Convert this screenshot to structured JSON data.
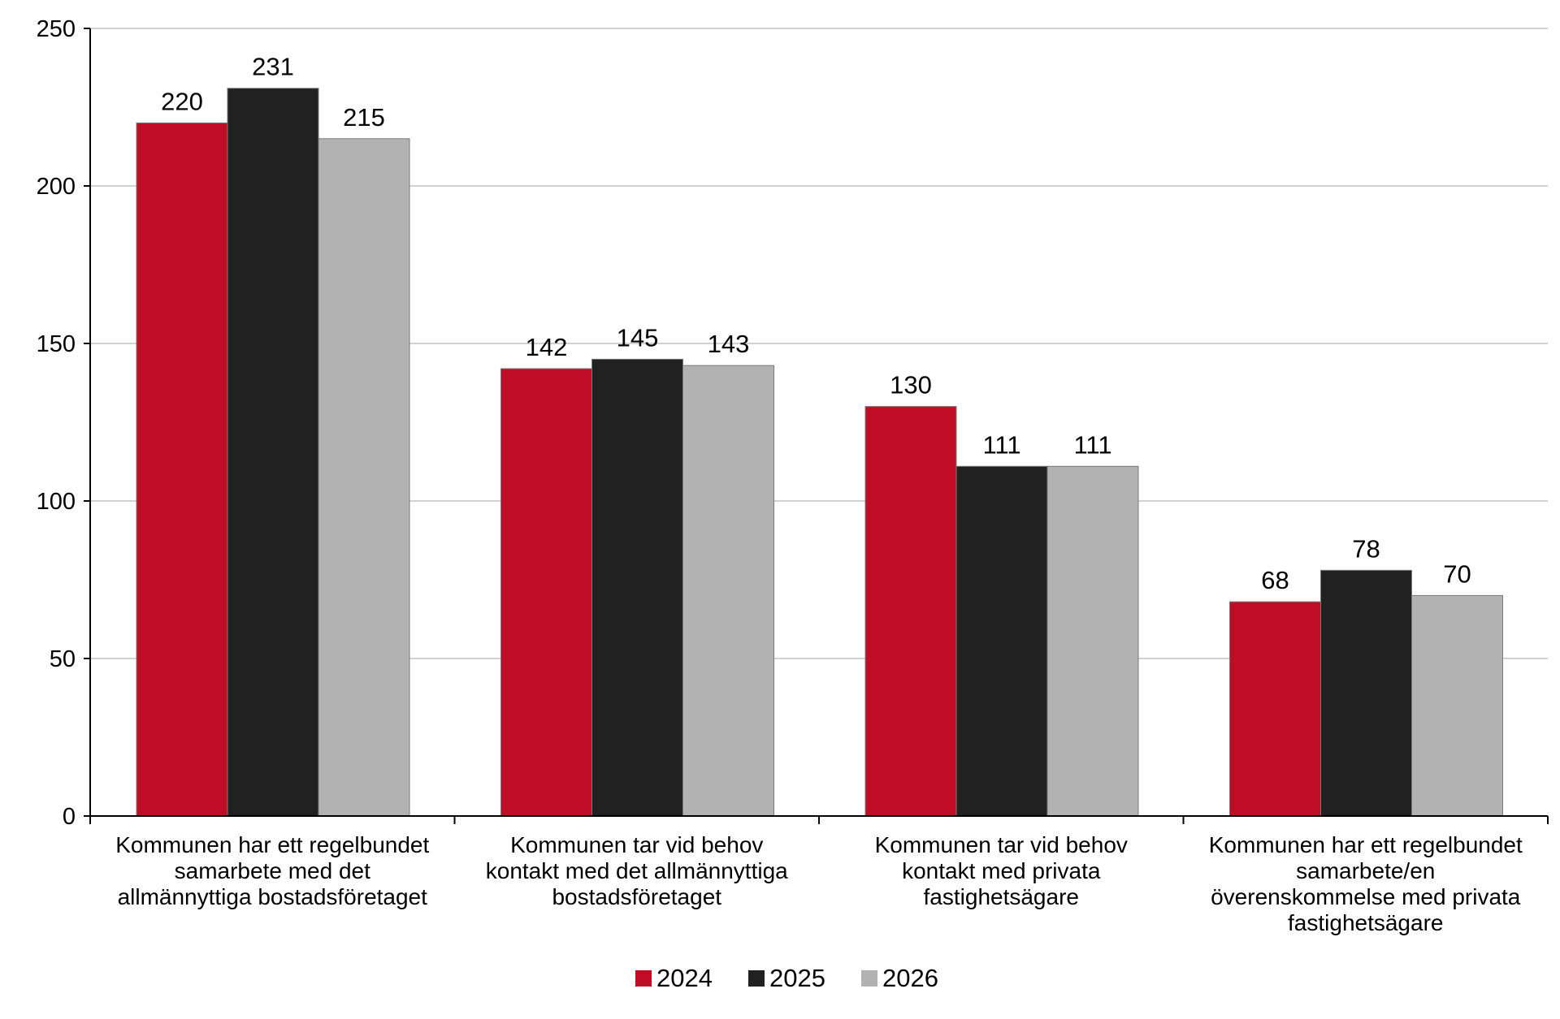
{
  "chart_data": {
    "type": "bar",
    "title": "",
    "xlabel": "",
    "ylabel": "",
    "ylim": [
      0,
      250
    ],
    "yticks": [
      0,
      50,
      100,
      150,
      200,
      250
    ],
    "grid": true,
    "legend_position": "bottom-center",
    "categories": [
      [
        "Kommunen har ett regelbundet",
        "samarbete med det",
        "allmännyttiga bostadsföretaget"
      ],
      [
        "Kommunen tar vid behov",
        "kontakt med det allmännyttiga",
        "bostadsföretaget"
      ],
      [
        "Kommunen tar vid behov",
        "kontakt med privata",
        "fastighetsägare"
      ],
      [
        "Kommunen har ett regelbundet",
        "samarbete/en",
        "överenskommelse med privata",
        "fastighetsägare"
      ]
    ],
    "series": [
      {
        "name": "2024",
        "color": "#c00d26",
        "values": [
          220,
          142,
          130,
          68
        ]
      },
      {
        "name": "2025",
        "color": "#212121",
        "values": [
          231,
          145,
          111,
          78
        ]
      },
      {
        "name": "2026",
        "color": "#b2b2b2",
        "values": [
          215,
          143,
          111,
          70
        ]
      }
    ]
  }
}
